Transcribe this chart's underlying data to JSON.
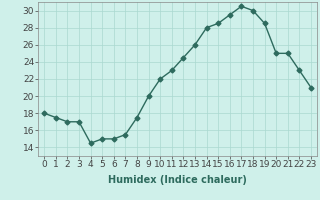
{
  "x": [
    0,
    1,
    2,
    3,
    4,
    5,
    6,
    7,
    8,
    9,
    10,
    11,
    12,
    13,
    14,
    15,
    16,
    17,
    18,
    19,
    20,
    21,
    22,
    23
  ],
  "y": [
    18,
    17.5,
    17,
    17,
    14.5,
    15,
    15,
    15.5,
    17.5,
    20,
    22,
    23,
    24.5,
    26,
    28,
    28.5,
    29.5,
    30.5,
    30,
    28.5,
    25,
    25,
    23,
    21
  ],
  "xlabel": "Humidex (Indice chaleur)",
  "xlim": [
    -0.5,
    23.5
  ],
  "ylim": [
    13,
    31
  ],
  "yticks": [
    14,
    16,
    18,
    20,
    22,
    24,
    26,
    28,
    30
  ],
  "xticks": [
    0,
    1,
    2,
    3,
    4,
    5,
    6,
    7,
    8,
    9,
    10,
    11,
    12,
    13,
    14,
    15,
    16,
    17,
    18,
    19,
    20,
    21,
    22,
    23
  ],
  "line_color": "#2e6b5e",
  "marker": "D",
  "marker_size": 2.5,
  "line_width": 1.0,
  "bg_color": "#cff0ea",
  "grid_color": "#aad8d0",
  "label_fontsize": 7,
  "tick_fontsize": 6.5
}
